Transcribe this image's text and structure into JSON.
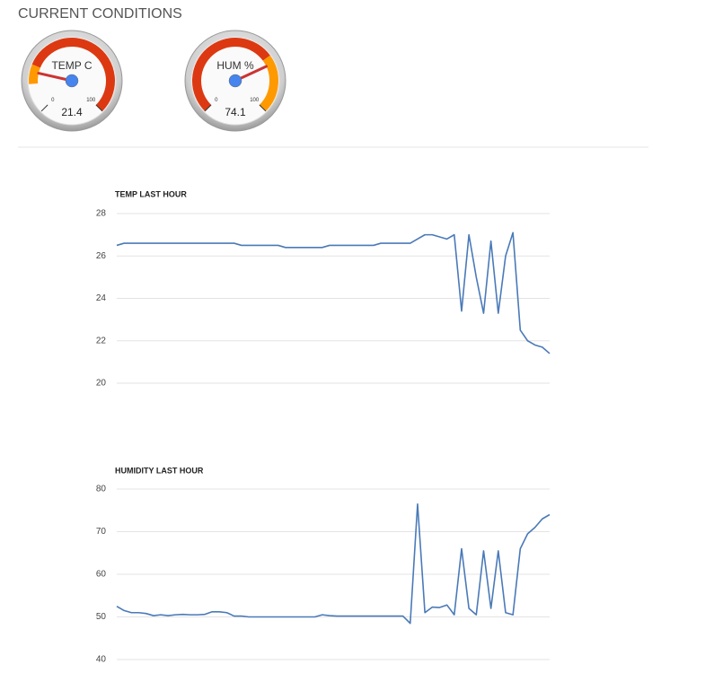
{
  "page_title": "CURRENT CONDITIONS",
  "chart_data": [
    {
      "type": "gauge",
      "label": "TEMP C",
      "value": 21.4,
      "range": [
        0,
        100
      ],
      "ticks": [
        0,
        100
      ],
      "bands": [
        {
          "from": 15,
          "to": 25,
          "color": "#ff9900"
        },
        {
          "from": 25,
          "to": 100,
          "color": "#dc3912"
        }
      ]
    },
    {
      "type": "gauge",
      "label": "HUM %",
      "value": 74.1,
      "range": [
        0,
        100
      ],
      "ticks": [
        0,
        100
      ],
      "bands": [
        {
          "from": 0,
          "to": 70,
          "color": "#dc3912"
        },
        {
          "from": 70,
          "to": 100,
          "color": "#ff9900"
        }
      ]
    },
    {
      "type": "line",
      "title": "TEMP LAST HOUR",
      "color": "#4a7ab8",
      "grid": true,
      "ylim": [
        20,
        28
      ],
      "yticks": [
        20,
        22,
        24,
        26,
        28
      ],
      "values": [
        26.5,
        26.6,
        26.6,
        26.6,
        26.6,
        26.6,
        26.6,
        26.6,
        26.6,
        26.6,
        26.6,
        26.6,
        26.6,
        26.6,
        26.6,
        26.6,
        26.6,
        26.5,
        26.5,
        26.5,
        26.5,
        26.5,
        26.5,
        26.4,
        26.4,
        26.4,
        26.4,
        26.4,
        26.4,
        26.5,
        26.5,
        26.5,
        26.5,
        26.5,
        26.5,
        26.5,
        26.6,
        26.6,
        26.6,
        26.6,
        26.6,
        26.8,
        27.0,
        27.0,
        26.9,
        26.8,
        27.0,
        23.4,
        27.0,
        25.0,
        23.3,
        26.7,
        23.3,
        26.0,
        27.1,
        22.5,
        22.0,
        21.8,
        21.7,
        21.4
      ]
    },
    {
      "type": "line",
      "title": "HUMIDITY LAST HOUR",
      "color": "#4a7ab8",
      "grid": true,
      "ylim": [
        40,
        80
      ],
      "yticks": [
        40,
        50,
        60,
        70,
        80
      ],
      "values": [
        52.5,
        51.5,
        51,
        51,
        50.8,
        50.3,
        50.5,
        50.3,
        50.5,
        50.6,
        50.5,
        50.5,
        50.6,
        51.2,
        51.2,
        51,
        50.2,
        50.2,
        50,
        50,
        50,
        50,
        50,
        50,
        50,
        50,
        50,
        50,
        50.5,
        50.3,
        50.2,
        50.2,
        50.2,
        50.2,
        50.2,
        50.2,
        50.2,
        50.2,
        50.2,
        50.2,
        48.5,
        76.5,
        51,
        52.3,
        52.2,
        52.8,
        50.5,
        66,
        52,
        50.5,
        65.5,
        52,
        65.5,
        51,
        50.5,
        66,
        69.5,
        71,
        73,
        74
      ]
    }
  ]
}
